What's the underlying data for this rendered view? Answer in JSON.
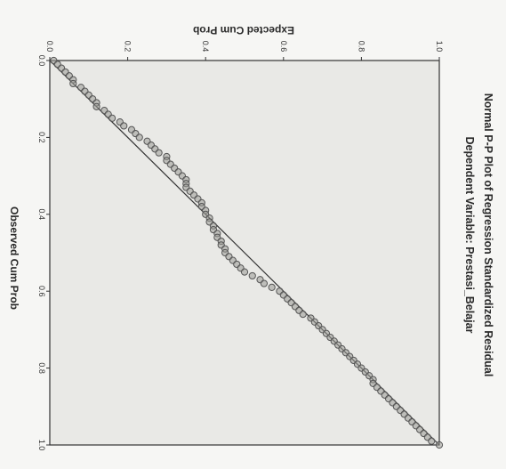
{
  "chart_data": {
    "type": "scatter",
    "orientation_note": "figure rotated 90 degrees clockwise",
    "title": "Normal P-P Plot of Regression Standardized Residual",
    "subtitle": "Dependent Variable: Prestasi_Belajar",
    "xlabel": "Observed Cum Prob",
    "ylabel": "Expected Cum Prob",
    "xlim": [
      0,
      1
    ],
    "ylim": [
      0,
      1
    ],
    "x_ticks": [
      "0.0",
      "0.2",
      "0.4",
      "0.6",
      "0.8",
      "1.0"
    ],
    "y_ticks": [
      "0.0",
      "0.2",
      "0.4",
      "0.6",
      "0.8",
      "1.0"
    ],
    "reference_line": [
      [
        0,
        0
      ],
      [
        1,
        1
      ]
    ],
    "colors": {
      "plot_background": "#e9e9e6",
      "marker_stroke": "#555555",
      "marker_fill": "#9a9a96",
      "line": "#333333"
    },
    "points": [
      [
        0.0,
        0.01
      ],
      [
        0.01,
        0.02
      ],
      [
        0.02,
        0.03
      ],
      [
        0.03,
        0.04
      ],
      [
        0.04,
        0.05
      ],
      [
        0.05,
        0.06
      ],
      [
        0.06,
        0.06
      ],
      [
        0.07,
        0.08
      ],
      [
        0.08,
        0.09
      ],
      [
        0.09,
        0.1
      ],
      [
        0.1,
        0.11
      ],
      [
        0.11,
        0.12
      ],
      [
        0.12,
        0.12
      ],
      [
        0.13,
        0.14
      ],
      [
        0.14,
        0.15
      ],
      [
        0.15,
        0.16
      ],
      [
        0.16,
        0.18
      ],
      [
        0.17,
        0.19
      ],
      [
        0.18,
        0.21
      ],
      [
        0.19,
        0.22
      ],
      [
        0.2,
        0.23
      ],
      [
        0.21,
        0.25
      ],
      [
        0.22,
        0.26
      ],
      [
        0.23,
        0.27
      ],
      [
        0.24,
        0.28
      ],
      [
        0.25,
        0.3
      ],
      [
        0.26,
        0.3
      ],
      [
        0.27,
        0.31
      ],
      [
        0.28,
        0.32
      ],
      [
        0.29,
        0.33
      ],
      [
        0.3,
        0.34
      ],
      [
        0.31,
        0.35
      ],
      [
        0.32,
        0.35
      ],
      [
        0.33,
        0.35
      ],
      [
        0.34,
        0.36
      ],
      [
        0.35,
        0.37
      ],
      [
        0.36,
        0.38
      ],
      [
        0.37,
        0.39
      ],
      [
        0.38,
        0.39
      ],
      [
        0.39,
        0.4
      ],
      [
        0.4,
        0.4
      ],
      [
        0.41,
        0.41
      ],
      [
        0.42,
        0.41
      ],
      [
        0.43,
        0.42
      ],
      [
        0.44,
        0.42
      ],
      [
        0.45,
        0.43
      ],
      [
        0.46,
        0.43
      ],
      [
        0.47,
        0.44
      ],
      [
        0.48,
        0.44
      ],
      [
        0.49,
        0.45
      ],
      [
        0.5,
        0.45
      ],
      [
        0.51,
        0.46
      ],
      [
        0.52,
        0.47
      ],
      [
        0.53,
        0.48
      ],
      [
        0.54,
        0.49
      ],
      [
        0.55,
        0.5
      ],
      [
        0.56,
        0.52
      ],
      [
        0.57,
        0.54
      ],
      [
        0.58,
        0.55
      ],
      [
        0.59,
        0.57
      ],
      [
        0.6,
        0.59
      ],
      [
        0.61,
        0.6
      ],
      [
        0.62,
        0.61
      ],
      [
        0.63,
        0.62
      ],
      [
        0.64,
        0.63
      ],
      [
        0.65,
        0.64
      ],
      [
        0.66,
        0.65
      ],
      [
        0.67,
        0.67
      ],
      [
        0.68,
        0.68
      ],
      [
        0.69,
        0.69
      ],
      [
        0.7,
        0.7
      ],
      [
        0.71,
        0.71
      ],
      [
        0.72,
        0.72
      ],
      [
        0.73,
        0.73
      ],
      [
        0.74,
        0.74
      ],
      [
        0.75,
        0.75
      ],
      [
        0.76,
        0.76
      ],
      [
        0.77,
        0.77
      ],
      [
        0.78,
        0.78
      ],
      [
        0.79,
        0.79
      ],
      [
        0.8,
        0.8
      ],
      [
        0.81,
        0.81
      ],
      [
        0.82,
        0.82
      ],
      [
        0.83,
        0.83
      ],
      [
        0.84,
        0.83
      ],
      [
        0.85,
        0.84
      ],
      [
        0.86,
        0.85
      ],
      [
        0.87,
        0.86
      ],
      [
        0.88,
        0.87
      ],
      [
        0.89,
        0.88
      ],
      [
        0.9,
        0.89
      ],
      [
        0.91,
        0.9
      ],
      [
        0.92,
        0.91
      ],
      [
        0.93,
        0.92
      ],
      [
        0.94,
        0.93
      ],
      [
        0.95,
        0.94
      ],
      [
        0.96,
        0.95
      ],
      [
        0.97,
        0.96
      ],
      [
        0.98,
        0.97
      ],
      [
        0.99,
        0.98
      ],
      [
        1.0,
        1.0
      ]
    ]
  }
}
